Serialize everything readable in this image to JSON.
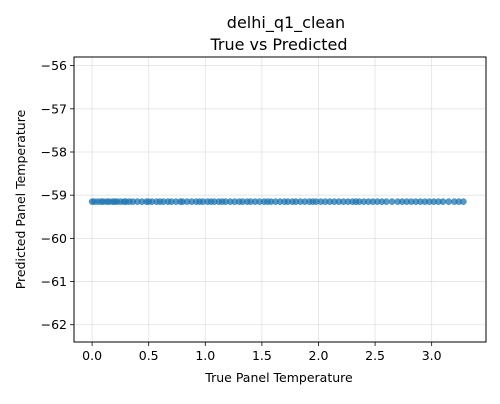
{
  "chart_data": {
    "type": "scatter",
    "title": "delhi_q1_clean",
    "subtitle": "True vs Predicted",
    "xlabel": "True Panel Temperature",
    "ylabel": "Predicted Panel Temperature",
    "xlim": [
      -0.16,
      3.48
    ],
    "ylim": [
      -62.4,
      -55.8
    ],
    "xticks": [
      0.0,
      0.5,
      1.0,
      1.5,
      2.0,
      2.5,
      3.0
    ],
    "xtick_labels": [
      "0.0",
      "0.5",
      "1.0",
      "1.5",
      "2.0",
      "2.5",
      "3.0"
    ],
    "yticks": [
      -56,
      -57,
      -58,
      -59,
      -60,
      -61,
      -62
    ],
    "ytick_labels": [
      "−56",
      "−57",
      "−58",
      "−59",
      "−60",
      "−61",
      "−62"
    ],
    "grid": true,
    "series": [
      {
        "color": "#1f77b4",
        "x": [
          0.0,
          0.02,
          0.05,
          0.08,
          0.1,
          0.13,
          0.15,
          0.18,
          0.2,
          0.22,
          0.25,
          0.28,
          0.3,
          0.33,
          0.36,
          0.4,
          0.44,
          0.48,
          0.5,
          0.53,
          0.57,
          0.6,
          0.63,
          0.67,
          0.7,
          0.74,
          0.78,
          0.8,
          0.84,
          0.88,
          0.92,
          0.95,
          0.98,
          1.02,
          1.05,
          1.08,
          1.12,
          1.15,
          1.18,
          1.22,
          1.26,
          1.3,
          1.33,
          1.37,
          1.4,
          1.44,
          1.48,
          1.52,
          1.55,
          1.58,
          1.62,
          1.66,
          1.7,
          1.73,
          1.77,
          1.8,
          1.84,
          1.88,
          1.92,
          1.95,
          1.98,
          2.02,
          2.06,
          2.1,
          2.14,
          2.18,
          2.22,
          2.26,
          2.3,
          2.33,
          2.36,
          2.4,
          2.44,
          2.48,
          2.52,
          2.56,
          2.6,
          2.65,
          2.7,
          2.74,
          2.78,
          2.82,
          2.86,
          2.9,
          2.94,
          2.98,
          3.02,
          3.06,
          3.1,
          3.15,
          3.2,
          3.24,
          3.28
        ],
        "y_value": -59.15
      }
    ]
  }
}
